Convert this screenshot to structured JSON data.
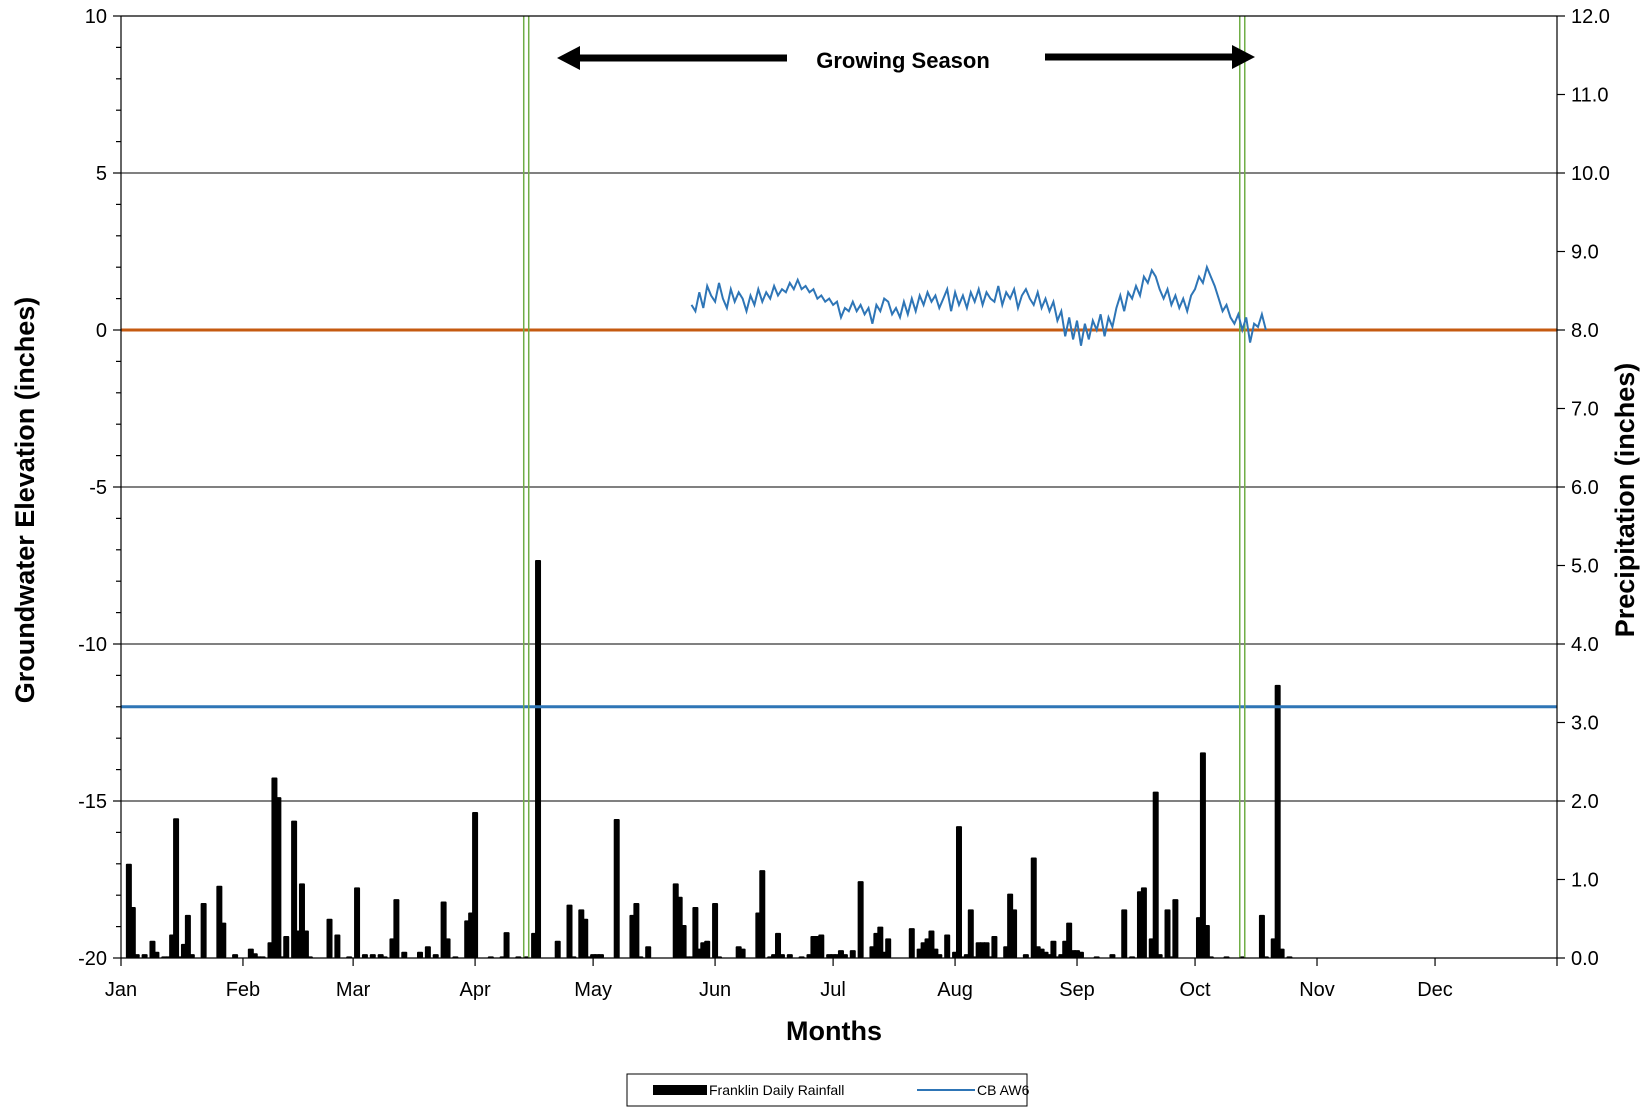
{
  "chart_data": {
    "type": "bar",
    "xlabel": "Months",
    "y_left_label": "Groundwater Elevation (inches)",
    "y_right_label": "Precipitation (inches)",
    "x_categories": [
      "Jan",
      "Feb",
      "Mar",
      "Apr",
      "May",
      "Jun",
      "Jul",
      "Aug",
      "Sep",
      "Oct",
      "Nov",
      "Dec"
    ],
    "y_left_ticks": [
      "10",
      "5",
      "0",
      "-5",
      "-10",
      "-15",
      "-20"
    ],
    "y_left_range": [
      -20,
      10
    ],
    "y_right_ticks": [
      "12.0",
      "11.0",
      "10.0",
      "9.0",
      "8.0",
      "7.0",
      "6.0",
      "5.0",
      "4.0",
      "3.0",
      "2.0",
      "1.0",
      "0.0"
    ],
    "y_right_range": [
      0,
      12
    ],
    "grid": true,
    "reference_lines": {
      "zero_line": {
        "y": 0,
        "color": "#c55a11"
      },
      "secondary_line": {
        "y": -12,
        "color": "#2e75b6"
      }
    },
    "growing_season": {
      "label": "Growing Season",
      "start_day": 103,
      "end_day": 285,
      "line_color": "#70ad47"
    },
    "legend_position": "bottom-center",
    "series": [
      {
        "name": "Franklin Daily Rainfall",
        "kind": "bar",
        "axis": "right",
        "color": "#000000",
        "points": [
          [
            2,
            1.2
          ],
          [
            3,
            0.65
          ],
          [
            4,
            0.05
          ],
          [
            6,
            0.05
          ],
          [
            8,
            0.22
          ],
          [
            9,
            0.08
          ],
          [
            11,
            0.02
          ],
          [
            12,
            0.02
          ],
          [
            13,
            0.3
          ],
          [
            14,
            1.78
          ],
          [
            15,
            0.02
          ],
          [
            16,
            0.18
          ],
          [
            17,
            0.55
          ],
          [
            18,
            0.05
          ],
          [
            21,
            0.7
          ],
          [
            25,
            0.92
          ],
          [
            26,
            0.45
          ],
          [
            29,
            0.05
          ],
          [
            33,
            0.12
          ],
          [
            34,
            0.06
          ],
          [
            35,
            0.02
          ],
          [
            36,
            0.02
          ],
          [
            38,
            0.2
          ],
          [
            39,
            2.3
          ],
          [
            40,
            2.05
          ],
          [
            41,
            0.02
          ],
          [
            42,
            0.28
          ],
          [
            44,
            1.75
          ],
          [
            45,
            0.35
          ],
          [
            46,
            0.95
          ],
          [
            47,
            0.35
          ],
          [
            48,
            0.02
          ],
          [
            53,
            0.5
          ],
          [
            55,
            0.3
          ],
          [
            58,
            0.02
          ],
          [
            60,
            0.9
          ],
          [
            62,
            0.05
          ],
          [
            64,
            0.05
          ],
          [
            66,
            0.05
          ],
          [
            67,
            0.02
          ],
          [
            69,
            0.25
          ],
          [
            70,
            0.75
          ],
          [
            72,
            0.08
          ],
          [
            76,
            0.08
          ],
          [
            78,
            0.15
          ],
          [
            80,
            0.05
          ],
          [
            82,
            0.72
          ],
          [
            83,
            0.25
          ],
          [
            85,
            0.02
          ],
          [
            88,
            0.48
          ],
          [
            89,
            0.58
          ],
          [
            90,
            1.86
          ],
          [
            94,
            0.02
          ],
          [
            97,
            0.02
          ],
          [
            98,
            0.33
          ],
          [
            101,
            0.02
          ],
          [
            103,
            0.02
          ],
          [
            105,
            0.32
          ],
          [
            106,
            5.07
          ],
          [
            111,
            0.22
          ],
          [
            114,
            0.68
          ],
          [
            115,
            0.02
          ],
          [
            117,
            0.62
          ],
          [
            118,
            0.5
          ],
          [
            119,
            0.02
          ],
          [
            120,
            0.05
          ],
          [
            121,
            0.05
          ],
          [
            122,
            0.05
          ],
          [
            126,
            1.77
          ],
          [
            130,
            0.55
          ],
          [
            131,
            0.7
          ],
          [
            132,
            0.02
          ],
          [
            134,
            0.15
          ],
          [
            141,
            0.95
          ],
          [
            142,
            0.78
          ],
          [
            143,
            0.42
          ],
          [
            144,
            0.02
          ],
          [
            145,
            0.02
          ],
          [
            146,
            0.65
          ],
          [
            147,
            0.12
          ],
          [
            148,
            0.2
          ],
          [
            149,
            0.22
          ],
          [
            151,
            0.7
          ],
          [
            152,
            0.02
          ],
          [
            157,
            0.15
          ],
          [
            158,
            0.12
          ],
          [
            162,
            0.58
          ],
          [
            163,
            1.12
          ],
          [
            165,
            0.02
          ],
          [
            166,
            0.05
          ],
          [
            167,
            0.32
          ],
          [
            168,
            0.05
          ],
          [
            170,
            0.05
          ],
          [
            173,
            0.02
          ],
          [
            175,
            0.05
          ],
          [
            176,
            0.28
          ],
          [
            177,
            0.28
          ],
          [
            178,
            0.3
          ],
          [
            180,
            0.05
          ],
          [
            181,
            0.05
          ],
          [
            182,
            0.05
          ],
          [
            183,
            0.1
          ],
          [
            184,
            0.05
          ],
          [
            186,
            0.1
          ],
          [
            188,
            0.98
          ],
          [
            191,
            0.15
          ],
          [
            192,
            0.32
          ],
          [
            193,
            0.4
          ],
          [
            194,
            0.08
          ],
          [
            195,
            0.25
          ],
          [
            201,
            0.38
          ],
          [
            203,
            0.12
          ],
          [
            204,
            0.2
          ],
          [
            205,
            0.25
          ],
          [
            206,
            0.35
          ],
          [
            207,
            0.12
          ],
          [
            208,
            0.05
          ],
          [
            210,
            0.3
          ],
          [
            212,
            0.08
          ],
          [
            213,
            1.68
          ],
          [
            214,
            0.02
          ],
          [
            215,
            0.05
          ],
          [
            216,
            0.62
          ],
          [
            217,
            0.02
          ],
          [
            218,
            0.2
          ],
          [
            219,
            0.2
          ],
          [
            220,
            0.2
          ],
          [
            221,
            0.02
          ],
          [
            222,
            0.28
          ],
          [
            225,
            0.15
          ],
          [
            226,
            0.82
          ],
          [
            227,
            0.62
          ],
          [
            230,
            0.05
          ],
          [
            232,
            1.28
          ],
          [
            233,
            0.15
          ],
          [
            234,
            0.12
          ],
          [
            235,
            0.08
          ],
          [
            236,
            0.05
          ],
          [
            237,
            0.22
          ],
          [
            238,
            0.02
          ],
          [
            239,
            0.05
          ],
          [
            240,
            0.22
          ],
          [
            241,
            0.45
          ],
          [
            242,
            0.1
          ],
          [
            243,
            0.1
          ],
          [
            244,
            0.08
          ],
          [
            248,
            0.02
          ],
          [
            252,
            0.05
          ],
          [
            255,
            0.62
          ],
          [
            257,
            0.02
          ],
          [
            259,
            0.85
          ],
          [
            260,
            0.9
          ],
          [
            262,
            0.25
          ],
          [
            263,
            2.12
          ],
          [
            264,
            0.05
          ],
          [
            266,
            0.62
          ],
          [
            267,
            0.02
          ],
          [
            268,
            0.75
          ],
          [
            274,
            0.52
          ],
          [
            275,
            2.62
          ],
          [
            276,
            0.42
          ],
          [
            277,
            0.02
          ],
          [
            281,
            0.02
          ],
          [
            285,
            0.02
          ],
          [
            290,
            0.55
          ],
          [
            291,
            0.02
          ],
          [
            293,
            0.25
          ],
          [
            294,
            3.48
          ],
          [
            295,
            0.12
          ],
          [
            297,
            0.02
          ]
        ]
      },
      {
        "name": "CB AW6",
        "kind": "line",
        "axis": "left",
        "color": "#2e75b6",
        "points": [
          [
            145,
            0.8
          ],
          [
            146,
            0.6
          ],
          [
            147,
            1.2
          ],
          [
            148,
            0.7
          ],
          [
            149,
            1.4
          ],
          [
            150,
            1.1
          ],
          [
            151,
            0.9
          ],
          [
            152,
            1.5
          ],
          [
            153,
            1.0
          ],
          [
            154,
            0.7
          ],
          [
            155,
            1.3
          ],
          [
            156,
            0.9
          ],
          [
            157,
            1.2
          ],
          [
            158,
            1.0
          ],
          [
            159,
            0.6
          ],
          [
            160,
            1.1
          ],
          [
            161,
            0.8
          ],
          [
            162,
            1.3
          ],
          [
            163,
            0.9
          ],
          [
            164,
            1.2
          ],
          [
            165,
            1.0
          ],
          [
            166,
            1.4
          ],
          [
            167,
            1.1
          ],
          [
            168,
            1.3
          ],
          [
            169,
            1.2
          ],
          [
            170,
            1.5
          ],
          [
            171,
            1.3
          ],
          [
            172,
            1.6
          ],
          [
            173,
            1.3
          ],
          [
            174,
            1.4
          ],
          [
            175,
            1.2
          ],
          [
            176,
            1.3
          ],
          [
            177,
            1.0
          ],
          [
            178,
            1.1
          ],
          [
            179,
            0.9
          ],
          [
            180,
            1.0
          ],
          [
            181,
            0.8
          ],
          [
            182,
            0.9
          ],
          [
            183,
            0.4
          ],
          [
            184,
            0.7
          ],
          [
            185,
            0.6
          ],
          [
            186,
            0.9
          ],
          [
            187,
            0.6
          ],
          [
            188,
            0.8
          ],
          [
            189,
            0.5
          ],
          [
            190,
            0.7
          ],
          [
            191,
            0.2
          ],
          [
            192,
            0.8
          ],
          [
            193,
            0.6
          ],
          [
            194,
            1.0
          ],
          [
            195,
            0.9
          ],
          [
            196,
            0.5
          ],
          [
            197,
            0.7
          ],
          [
            198,
            0.4
          ],
          [
            199,
            0.9
          ],
          [
            200,
            0.5
          ],
          [
            201,
            1.0
          ],
          [
            202,
            0.6
          ],
          [
            203,
            1.1
          ],
          [
            204,
            0.8
          ],
          [
            205,
            1.2
          ],
          [
            206,
            0.9
          ],
          [
            207,
            1.1
          ],
          [
            208,
            0.7
          ],
          [
            209,
            1.0
          ],
          [
            210,
            1.3
          ],
          [
            211,
            0.6
          ],
          [
            212,
            1.2
          ],
          [
            213,
            0.8
          ],
          [
            214,
            1.1
          ],
          [
            215,
            0.7
          ],
          [
            216,
            1.2
          ],
          [
            217,
            0.9
          ],
          [
            218,
            1.3
          ],
          [
            219,
            0.8
          ],
          [
            220,
            1.2
          ],
          [
            221,
            1.0
          ],
          [
            222,
            0.9
          ],
          [
            223,
            1.4
          ],
          [
            224,
            0.8
          ],
          [
            225,
            1.2
          ],
          [
            226,
            1.0
          ],
          [
            227,
            1.3
          ],
          [
            228,
            0.7
          ],
          [
            229,
            1.1
          ],
          [
            230,
            1.3
          ],
          [
            231,
            1.0
          ],
          [
            232,
            0.8
          ],
          [
            233,
            1.2
          ],
          [
            234,
            0.7
          ],
          [
            235,
            1.0
          ],
          [
            236,
            0.6
          ],
          [
            237,
            0.9
          ],
          [
            238,
            0.3
          ],
          [
            239,
            0.6
          ],
          [
            240,
            -0.2
          ],
          [
            241,
            0.4
          ],
          [
            242,
            -0.3
          ],
          [
            243,
            0.3
          ],
          [
            244,
            -0.5
          ],
          [
            245,
            0.2
          ],
          [
            246,
            -0.3
          ],
          [
            247,
            0.3
          ],
          [
            248,
            0.0
          ],
          [
            249,
            0.5
          ],
          [
            250,
            -0.2
          ],
          [
            251,
            0.4
          ],
          [
            252,
            0.1
          ],
          [
            253,
            0.7
          ],
          [
            254,
            1.1
          ],
          [
            255,
            0.6
          ],
          [
            256,
            1.2
          ],
          [
            257,
            1.0
          ],
          [
            258,
            1.4
          ],
          [
            259,
            1.1
          ],
          [
            260,
            1.7
          ],
          [
            261,
            1.5
          ],
          [
            262,
            1.9
          ],
          [
            263,
            1.7
          ],
          [
            264,
            1.3
          ],
          [
            265,
            1.0
          ],
          [
            266,
            1.3
          ],
          [
            267,
            0.8
          ],
          [
            268,
            1.1
          ],
          [
            269,
            0.7
          ],
          [
            270,
            1.0
          ],
          [
            271,
            0.6
          ],
          [
            272,
            1.1
          ],
          [
            273,
            1.3
          ],
          [
            274,
            1.7
          ],
          [
            275,
            1.5
          ],
          [
            276,
            2.0
          ],
          [
            277,
            1.7
          ],
          [
            278,
            1.4
          ],
          [
            279,
            1.0
          ],
          [
            280,
            0.6
          ],
          [
            281,
            0.8
          ],
          [
            282,
            0.4
          ],
          [
            283,
            0.2
          ],
          [
            284,
            0.5
          ],
          [
            285,
            0.0
          ],
          [
            286,
            0.4
          ],
          [
            287,
            -0.4
          ],
          [
            288,
            0.2
          ],
          [
            289,
            0.1
          ],
          [
            290,
            0.5
          ],
          [
            291,
            0.0
          ]
        ]
      }
    ]
  }
}
